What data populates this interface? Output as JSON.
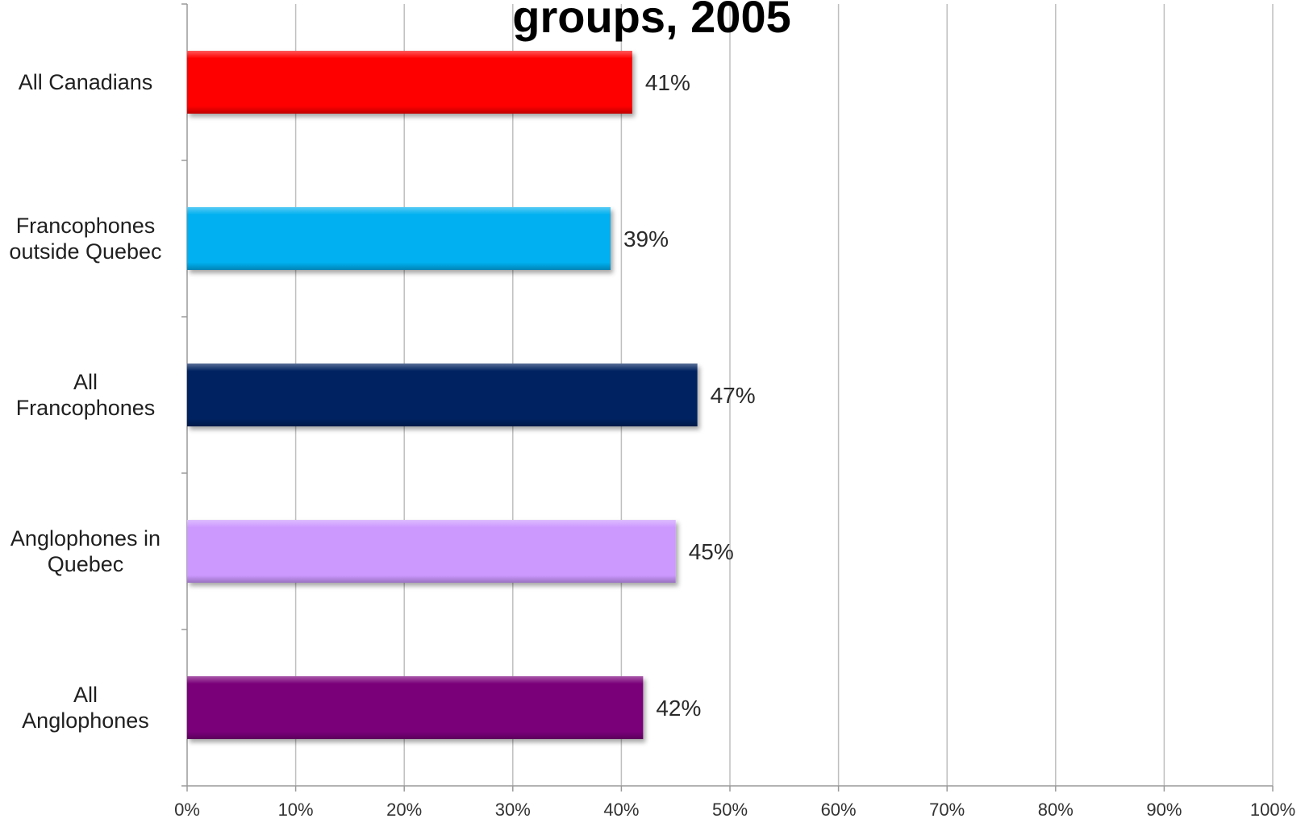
{
  "chart_data": {
    "type": "bar",
    "orientation": "horizontal",
    "title": "groups, 2005",
    "categories": [
      [
        "All Canadians"
      ],
      [
        "Francophones",
        "outside Quebec"
      ],
      [
        "All",
        "Francophones"
      ],
      [
        "Anglophones in",
        "Quebec"
      ],
      [
        "All",
        "Anglophones"
      ]
    ],
    "values": [
      41,
      39,
      47,
      45,
      42
    ],
    "data_labels": [
      "41%",
      "39%",
      "47%",
      "45%",
      "42%"
    ],
    "bar_colors": [
      "#ff0000",
      "#00b0f0",
      "#002060",
      "#cc99ff",
      "#7a007a"
    ],
    "xlim": [
      0,
      100
    ],
    "x_ticks": [
      0,
      10,
      20,
      30,
      40,
      50,
      60,
      70,
      80,
      90,
      100
    ],
    "x_tick_labels": [
      "0%",
      "10%",
      "20%",
      "30%",
      "40%",
      "50%",
      "60%",
      "70%",
      "80%",
      "90%",
      "100%"
    ],
    "xlabel": "",
    "ylabel": "",
    "grid": "vertical",
    "legend": "none"
  }
}
